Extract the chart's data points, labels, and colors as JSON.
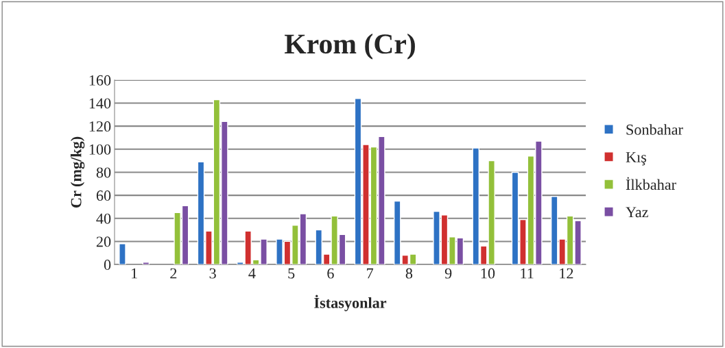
{
  "chart_data": {
    "type": "bar",
    "title": "Krom (Cr)",
    "xlabel": "İstasyonlar",
    "ylabel": "Cr (mg/kg)",
    "categories": [
      "1",
      "2",
      "3",
      "4",
      "5",
      "6",
      "7",
      "8",
      "9",
      "10",
      "11",
      "12"
    ],
    "series": [
      {
        "name": "Sonbahar",
        "color": "#2e72c4",
        "values": [
          18,
          null,
          89,
          2,
          22,
          30,
          144,
          55,
          46,
          101,
          80,
          59
        ]
      },
      {
        "name": "Kış",
        "color": "#d0302f",
        "values": [
          null,
          null,
          29,
          29,
          20,
          9,
          104,
          8,
          43,
          16,
          39,
          22
        ]
      },
      {
        "name": "İlkbahar",
        "color": "#93c03a",
        "values": [
          null,
          45,
          143,
          4,
          34,
          42,
          102,
          9,
          24,
          90,
          94,
          42
        ]
      },
      {
        "name": "Yaz",
        "color": "#7a4fa3",
        "values": [
          2,
          51,
          124,
          22,
          44,
          26,
          111,
          null,
          23,
          null,
          107,
          38
        ]
      }
    ],
    "ylim": [
      0,
      160
    ],
    "yticks": [
      0,
      20,
      40,
      60,
      80,
      100,
      120,
      140,
      160
    ],
    "grid": "y",
    "legend": "right"
  }
}
